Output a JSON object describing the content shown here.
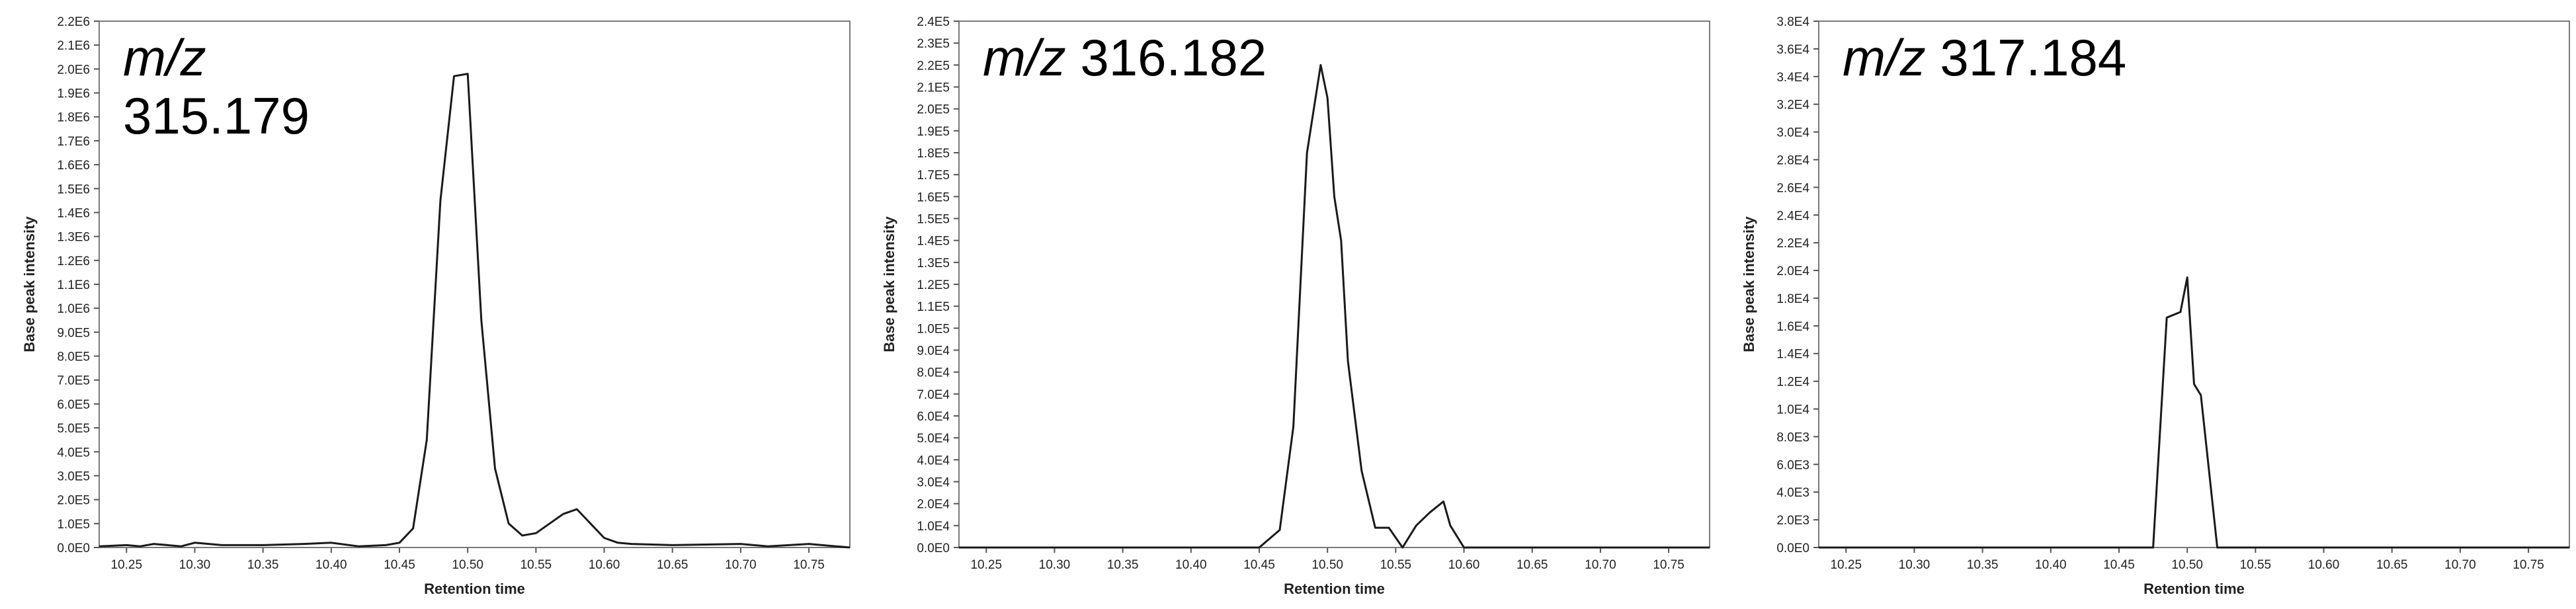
{
  "chart_data": [
    {
      "type": "line",
      "title_prefix": "m/z",
      "title_value": "315.179",
      "xlabel": "Retention time",
      "ylabel": "Base peak intensity",
      "xlim": [
        10.23,
        10.78
      ],
      "ylim": [
        0,
        2200000
      ],
      "xticks": [
        "10.25",
        "10.30",
        "10.35",
        "10.40",
        "10.45",
        "10.50",
        "10.55",
        "10.60",
        "10.65",
        "10.70",
        "10.75"
      ],
      "yticks": [
        "0.0E0",
        "1.0E5",
        "2.0E5",
        "3.0E5",
        "4.0E5",
        "5.0E5",
        "6.0E5",
        "7.0E5",
        "8.0E5",
        "9.0E5",
        "1.0E6",
        "1.1E6",
        "1.2E6",
        "1.3E6",
        "1.4E6",
        "1.5E6",
        "1.6E6",
        "1.7E6",
        "1.8E6",
        "1.9E6",
        "2.0E6",
        "2.1E6",
        "2.2E6"
      ],
      "series": [
        {
          "x": [
            10.23,
            10.25,
            10.26,
            10.27,
            10.29,
            10.3,
            10.32,
            10.35,
            10.38,
            10.4,
            10.42,
            10.44,
            10.45,
            10.46,
            10.47,
            10.48,
            10.49,
            10.5,
            10.51,
            10.52,
            10.53,
            10.54,
            10.55,
            10.56,
            10.57,
            10.58,
            10.59,
            10.6,
            10.61,
            10.62,
            10.65,
            10.7,
            10.72,
            10.75,
            10.77,
            10.78
          ],
          "y": [
            5000,
            10000,
            5000,
            15000,
            5000,
            20000,
            10000,
            10000,
            15000,
            20000,
            5000,
            10000,
            20000,
            80000,
            450000,
            1450000,
            1970000,
            1980000,
            950000,
            330000,
            100000,
            50000,
            60000,
            100000,
            140000,
            160000,
            100000,
            40000,
            20000,
            15000,
            10000,
            15000,
            5000,
            15000,
            5000,
            0
          ]
        }
      ]
    },
    {
      "type": "line",
      "title_prefix": "m/z",
      "title_value": "316.182",
      "xlabel": "Retention time",
      "ylabel": "Base peak intensity",
      "xlim": [
        10.23,
        10.78
      ],
      "ylim": [
        0,
        240000
      ],
      "xticks": [
        "10.25",
        "10.30",
        "10.35",
        "10.40",
        "10.45",
        "10.50",
        "10.55",
        "10.60",
        "10.65",
        "10.70",
        "10.75"
      ],
      "yticks": [
        "0.0E0",
        "1.0E4",
        "2.0E4",
        "3.0E4",
        "4.0E4",
        "5.0E4",
        "6.0E4",
        "7.0E4",
        "8.0E4",
        "9.0E4",
        "1.0E5",
        "1.1E5",
        "1.2E5",
        "1.3E5",
        "1.4E5",
        "1.5E5",
        "1.6E5",
        "1.7E5",
        "1.8E5",
        "1.9E5",
        "2.0E5",
        "2.1E5",
        "2.2E5",
        "2.3E5",
        "2.4E5"
      ],
      "series": [
        {
          "x": [
            10.23,
            10.45,
            10.465,
            10.475,
            10.485,
            10.495,
            10.5,
            10.505,
            10.51,
            10.515,
            10.525,
            10.535,
            10.545,
            10.555,
            10.565,
            10.575,
            10.585,
            10.59,
            10.6,
            10.78
          ],
          "y": [
            0,
            0,
            8000,
            55000,
            180000,
            220000,
            205000,
            160000,
            140000,
            85000,
            35000,
            9000,
            9000,
            0,
            10000,
            16000,
            21000,
            10000,
            0,
            0
          ]
        }
      ]
    },
    {
      "type": "line",
      "title_prefix": "m/z",
      "title_value": "317.184",
      "xlabel": "Retention time",
      "ylabel": "Base peak intensity",
      "xlim": [
        10.23,
        10.78
      ],
      "ylim": [
        0,
        38000
      ],
      "xticks": [
        "10.25",
        "10.30",
        "10.35",
        "10.40",
        "10.45",
        "10.50",
        "10.55",
        "10.60",
        "10.65",
        "10.70",
        "10.75"
      ],
      "yticks": [
        "0.0E0",
        "2.0E3",
        "4.0E3",
        "6.0E3",
        "8.0E3",
        "1.0E4",
        "1.2E4",
        "1.4E4",
        "1.6E4",
        "1.8E4",
        "2.0E4",
        "2.2E4",
        "2.4E4",
        "2.6E4",
        "2.8E4",
        "3.0E4",
        "3.2E4",
        "3.4E4",
        "3.6E4",
        "3.8E4"
      ],
      "series": [
        {
          "x": [
            10.23,
            10.475,
            10.485,
            10.495,
            10.5,
            10.505,
            10.51,
            10.522,
            10.78
          ],
          "y": [
            0,
            0,
            16600,
            17000,
            19500,
            11800,
            11000,
            0,
            0
          ]
        }
      ]
    }
  ]
}
